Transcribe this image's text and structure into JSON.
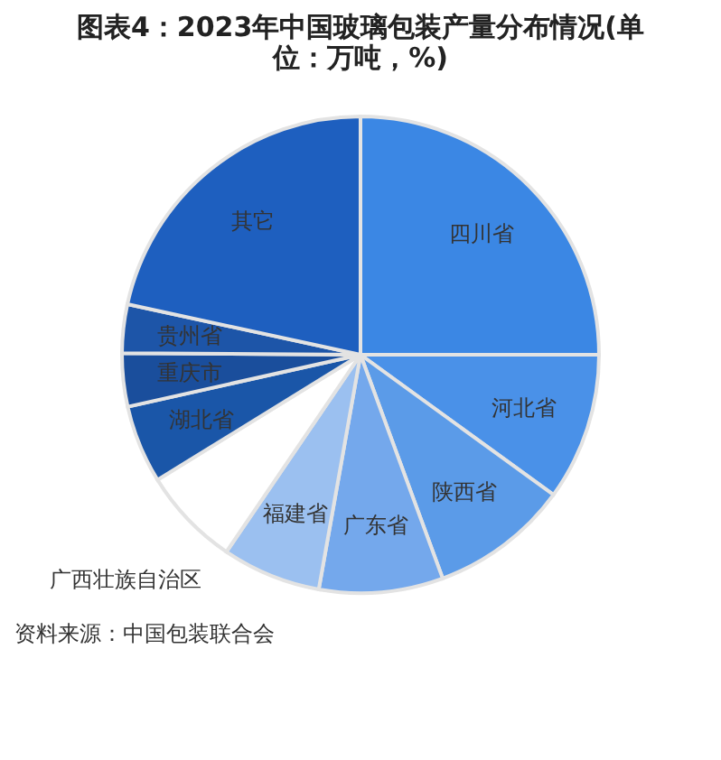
{
  "chart_data": {
    "type": "pie",
    "title": "图表4：2023年中国玻璃包装产量分布情况(单位：万吨，%)",
    "categories": [
      "四川省",
      "河北省",
      "陕西省",
      "广东省",
      "福建省",
      "广西壮族自治区",
      "湖北省",
      "重庆市",
      "贵州省",
      "其它"
    ],
    "values": [
      25,
      10,
      9.4,
      8.4,
      6.7,
      6.7,
      5.3,
      3.6,
      3.3,
      21.6
    ],
    "colors": [
      "#3b87e4",
      "#4a91e8",
      "#5b9be8",
      "#74a8ec",
      "#9bc0f0",
      "#ffffff",
      "#1a56a8",
      "#1a4e9c",
      "#1d55a8",
      "#1e5fbf"
    ],
    "legend": false,
    "annotations": [
      "资料来源：中国包装联合会"
    ]
  }
}
